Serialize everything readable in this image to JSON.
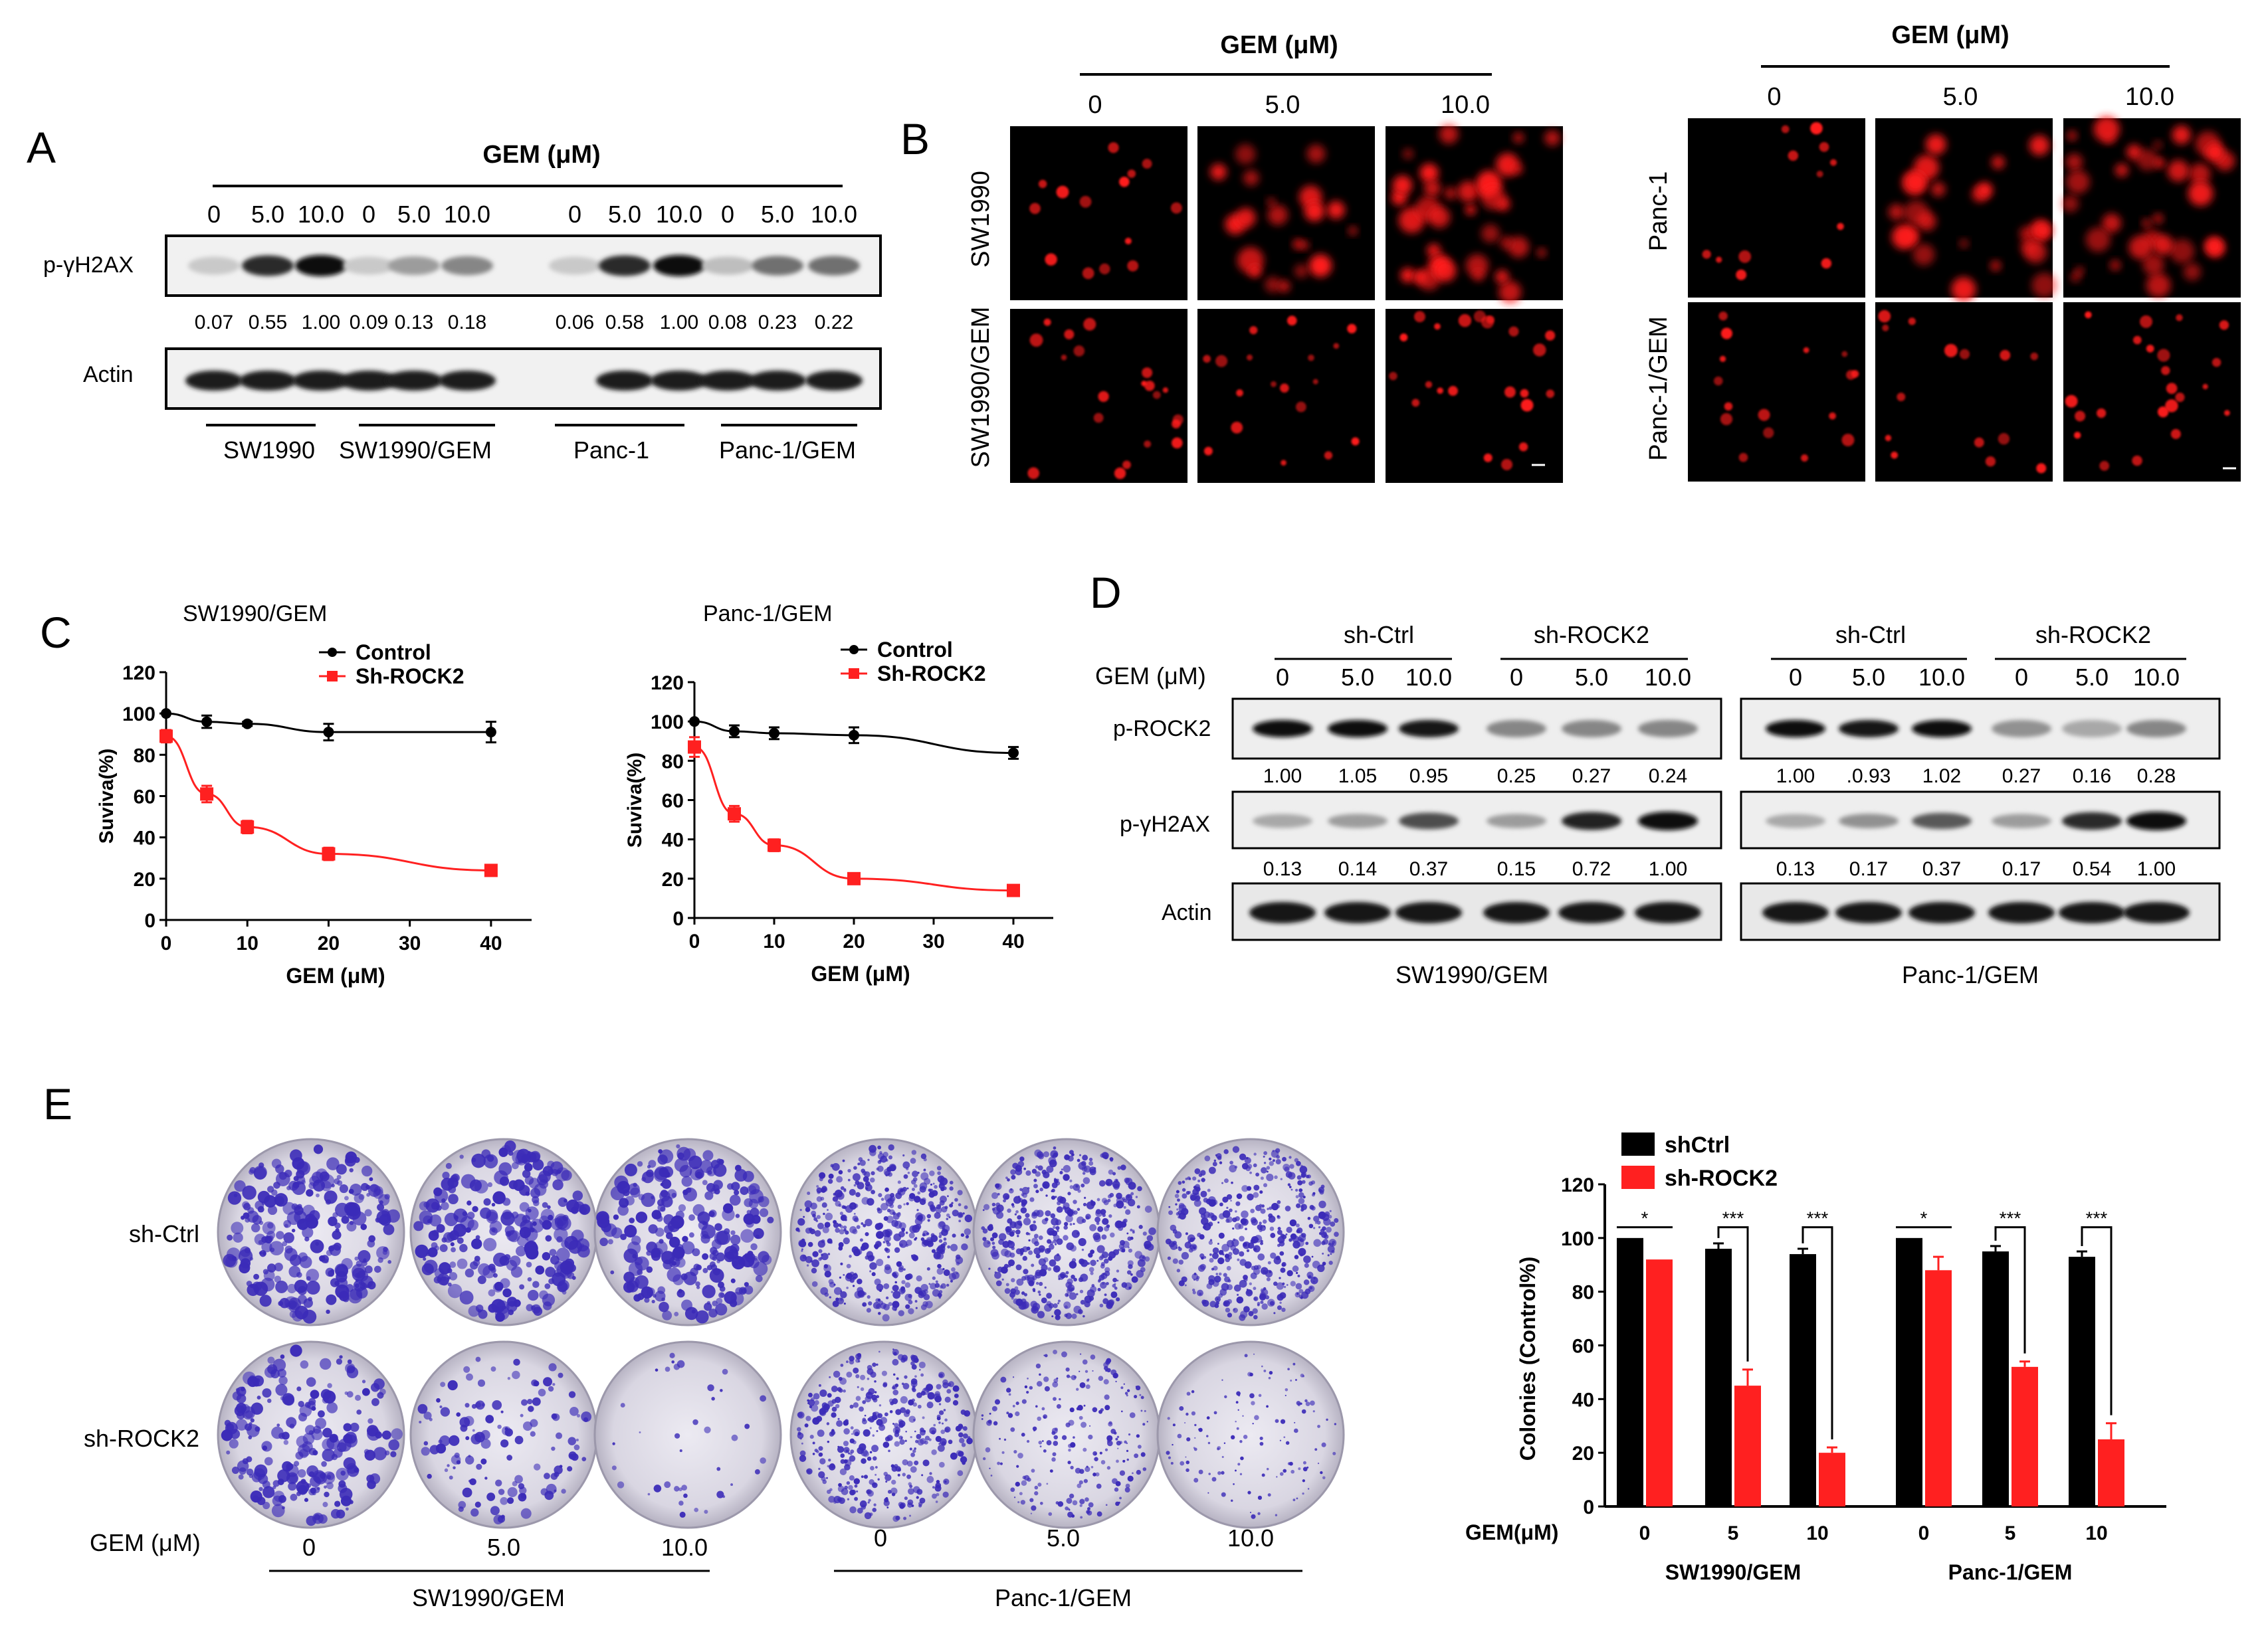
{
  "panel_letters": [
    "A",
    "B",
    "C",
    "D",
    "E"
  ],
  "panel_a": {
    "header": "GEM (μM)",
    "doses": [
      "0",
      "5.0",
      "10.0",
      "0",
      "5.0",
      "10.0",
      "0",
      "5.0",
      "10.0",
      "0",
      "5.0",
      "10.0"
    ],
    "row_labels": [
      "p-γH2AX",
      "Actin"
    ],
    "ratios": [
      "0.07",
      "0.55",
      "1.00",
      "0.09",
      "0.13",
      "0.18",
      "0.06",
      "0.58",
      "1.00",
      "0.08",
      "0.23",
      "0.22"
    ],
    "groups": [
      "SW1990",
      "SW1990/GEM",
      "Panc-1",
      "Panc-1/GEM"
    ],
    "band_intensity": [
      0.15,
      0.85,
      1.0,
      0.15,
      0.35,
      0.45,
      0.15,
      0.85,
      1.0,
      0.2,
      0.55,
      0.55
    ]
  },
  "panel_b": {
    "left": {
      "header": "GEM (μM)",
      "doses": [
        "0",
        "5.0",
        "10.0"
      ],
      "rows": [
        "SW1990",
        "SW1990/GEM"
      ]
    },
    "right": {
      "header": "GEM (μM)",
      "doses": [
        "0",
        "5.0",
        "10.0"
      ],
      "rows": [
        "Panc-1",
        "Panc-1/GEM"
      ]
    },
    "foci_color": "#ff1a1a"
  },
  "panel_d": {
    "gem_label": "GEM (μM)",
    "row_labels": [
      "p-ROCK2",
      "p-γH2AX",
      "Actin"
    ],
    "left": {
      "groups": [
        "sh-Ctrl",
        "sh-ROCK2"
      ],
      "doses": [
        "0",
        "5.0",
        "10.0",
        "0",
        "5.0",
        "10.0"
      ],
      "rock2_ratios": [
        "1.00",
        "1.05",
        "0.95",
        "0.25",
        "0.27",
        "0.24"
      ],
      "h2ax_ratios": [
        "0.13",
        "0.14",
        "0.37",
        "0.15",
        "0.72",
        "1.00"
      ],
      "rock2_intensity": [
        1.0,
        1.0,
        0.95,
        0.45,
        0.45,
        0.45
      ],
      "h2ax_intensity": [
        0.3,
        0.35,
        0.7,
        0.35,
        0.9,
        1.0
      ],
      "caption": "SW1990/GEM"
    },
    "right": {
      "groups": [
        "sh-Ctrl",
        "sh-ROCK2"
      ],
      "doses": [
        "0",
        "5.0",
        "10.0",
        "0",
        "5.0",
        "10.0"
      ],
      "rock2_ratios": [
        "1.00",
        ".0.93",
        "1.02",
        "0.27",
        "0.16",
        "0.28"
      ],
      "h2ax_ratios": [
        "0.13",
        "0.17",
        "0.37",
        "0.17",
        "0.54",
        "1.00"
      ],
      "rock2_intensity": [
        1.0,
        0.95,
        1.0,
        0.4,
        0.3,
        0.45
      ],
      "h2ax_intensity": [
        0.3,
        0.4,
        0.65,
        0.35,
        0.85,
        1.0
      ],
      "caption": "Panc-1/GEM"
    }
  },
  "panel_e": {
    "row_labels": [
      "sh-Ctrl",
      "sh-ROCK2"
    ],
    "gem_label": "GEM (μM)",
    "doses": [
      "0",
      "5.0",
      "10.0",
      "0",
      "5.0",
      "10.0"
    ],
    "groups": [
      "SW1990/GEM",
      "Panc-1/GEM"
    ],
    "colony_density": [
      [
        1.0,
        1.0,
        1.0,
        0.95,
        0.95,
        0.9
      ],
      [
        0.85,
        0.5,
        0.15,
        0.8,
        0.45,
        0.25
      ]
    ],
    "colony_color": "#3b2bb8"
  },
  "chart_data": [
    {
      "type": "line",
      "title": "SW1990/GEM",
      "xlabel": "GEM (μM)",
      "ylabel": "Suviva(%)",
      "xlim": [
        0,
        45
      ],
      "ylim": [
        0,
        120
      ],
      "xticks": [
        0,
        10,
        20,
        30,
        40
      ],
      "yticks": [
        0,
        20,
        40,
        60,
        80,
        100,
        120
      ],
      "legend": "top-right",
      "series": [
        {
          "name": "Control",
          "color": "#000000",
          "marker": "circle",
          "x": [
            0,
            5,
            10,
            20,
            40
          ],
          "y": [
            100,
            96,
            95,
            91,
            91
          ],
          "err": [
            0,
            3,
            1,
            4,
            5
          ]
        },
        {
          "name": "Sh-ROCK2",
          "color": "#ff2020",
          "marker": "square",
          "x": [
            0,
            5,
            10,
            20,
            40
          ],
          "y": [
            89,
            61,
            45,
            32,
            24
          ],
          "err": [
            3,
            4,
            3,
            3,
            2
          ]
        }
      ]
    },
    {
      "type": "line",
      "title": "Panc-1/GEM",
      "xlabel": "GEM (μM)",
      "ylabel": "Suviva(%)",
      "xlim": [
        0,
        45
      ],
      "ylim": [
        0,
        120
      ],
      "xticks": [
        0,
        10,
        20,
        30,
        40
      ],
      "yticks": [
        0,
        20,
        40,
        60,
        80,
        100,
        120
      ],
      "legend": "top-right",
      "series": [
        {
          "name": "Control",
          "color": "#000000",
          "marker": "circle",
          "x": [
            0,
            5,
            10,
            20,
            40
          ],
          "y": [
            100,
            95,
            94,
            93,
            84
          ],
          "err": [
            0,
            3,
            3,
            4,
            3
          ]
        },
        {
          "name": "Sh-ROCK2",
          "color": "#ff2020",
          "marker": "square",
          "x": [
            0,
            5,
            10,
            20,
            40
          ],
          "y": [
            87,
            53,
            37,
            20,
            14
          ],
          "err": [
            5,
            4,
            3,
            2,
            1
          ]
        }
      ]
    },
    {
      "type": "bar",
      "ylabel": "Colonies (Control%)",
      "xlabel": "GEM(μM)",
      "categories": [
        "0",
        "5",
        "10",
        "0",
        "5",
        "10"
      ],
      "groups": [
        "SW1990/GEM",
        "Panc-1/GEM"
      ],
      "ylim": [
        0,
        120
      ],
      "yticks": [
        0,
        20,
        40,
        60,
        80,
        100,
        120
      ],
      "legend": "top-left",
      "series": [
        {
          "name": "shCtrl",
          "color": "#000000",
          "values": [
            100,
            96,
            94,
            100,
            95,
            93
          ],
          "err": [
            0,
            2,
            2,
            0,
            2,
            2
          ]
        },
        {
          "name": "sh-ROCK2",
          "color": "#ff2020",
          "values": [
            92,
            45,
            20,
            88,
            52,
            25
          ],
          "err": [
            0,
            6,
            2,
            5,
            2,
            6
          ]
        }
      ],
      "significance": [
        "*",
        "***",
        "***",
        "*",
        "***",
        "***"
      ]
    }
  ]
}
